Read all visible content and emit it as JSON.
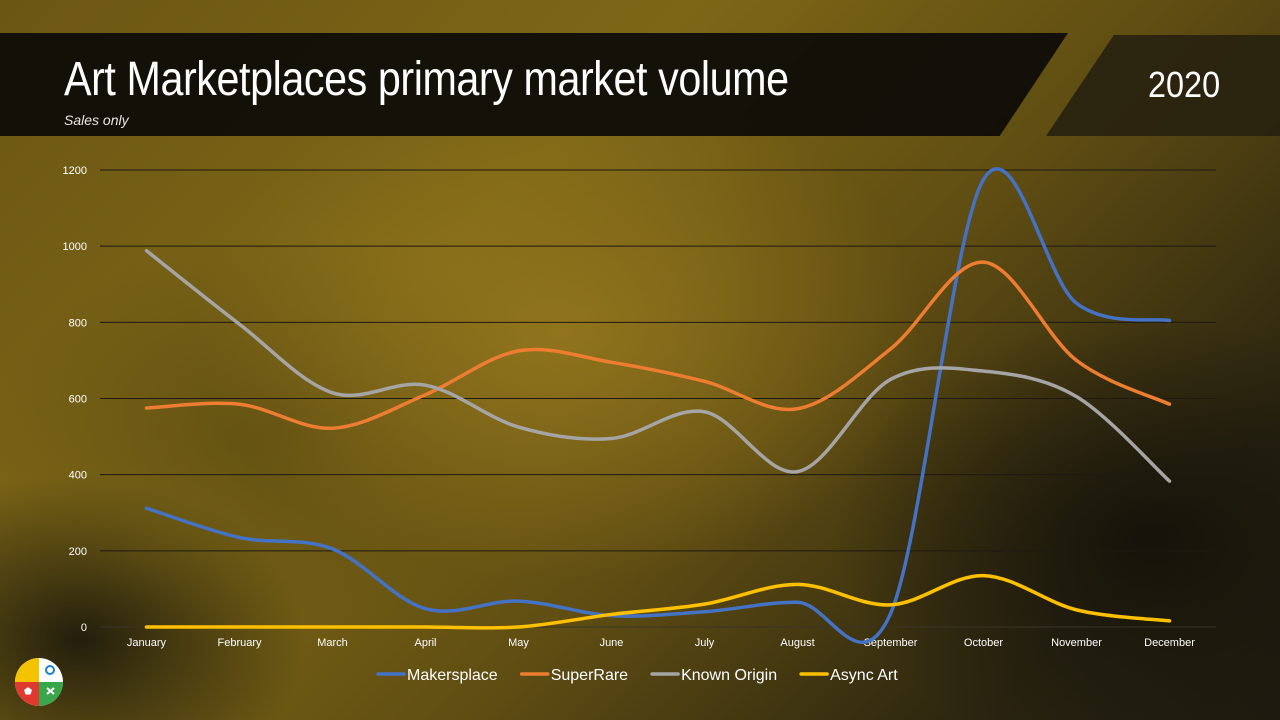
{
  "header": {
    "title": "Art Marketplaces primary market volume",
    "subtitle": "Sales only",
    "year": "2020"
  },
  "chart_data": {
    "type": "line",
    "title": "Art Marketplaces primary market volume",
    "subtitle": "Sales only",
    "categories": [
      "January",
      "February",
      "March",
      "April",
      "May",
      "June",
      "July",
      "August",
      "September",
      "October",
      "November",
      "December"
    ],
    "ylim": [
      0,
      1200
    ],
    "yticks": [
      0,
      200,
      400,
      600,
      800,
      1000,
      1200
    ],
    "grid": true,
    "legend": "bottom",
    "series": [
      {
        "name": "Makersplace",
        "color": "#4472c4",
        "values": [
          312,
          235,
          205,
          48,
          68,
          30,
          40,
          65,
          35,
          1175,
          850,
          805
        ]
      },
      {
        "name": "SuperRare",
        "color": "#ed7d31",
        "values": [
          575,
          585,
          522,
          610,
          725,
          695,
          645,
          573,
          730,
          958,
          700,
          585
        ]
      },
      {
        "name": "Known Origin",
        "color": "#a5a5a5",
        "values": [
          988,
          795,
          615,
          635,
          525,
          495,
          565,
          408,
          650,
          672,
          605,
          383
        ]
      },
      {
        "name": "Async Art",
        "color": "#ffc000",
        "values": [
          0,
          0,
          0,
          0,
          0,
          33,
          60,
          112,
          58,
          135,
          45,
          16
        ]
      }
    ]
  }
}
